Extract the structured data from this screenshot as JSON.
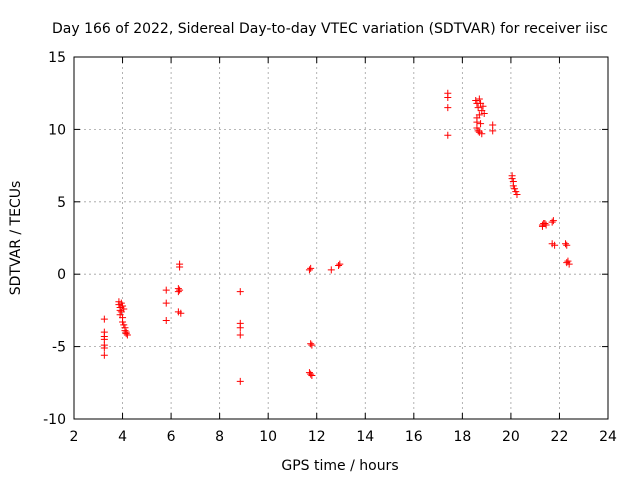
{
  "chart_data": {
    "type": "scatter",
    "title": "Day 166 of 2022, Sidereal Day-to-day VTEC variation (SDTVAR) for receiver iisc",
    "xlabel": "GPS time / hours",
    "ylabel": "SDTVAR / TECUs",
    "xlim": [
      2,
      24
    ],
    "ylim": [
      -10,
      15
    ],
    "xticks": [
      "2",
      "4",
      "6",
      "8",
      "10",
      "12",
      "14",
      "16",
      "18",
      "20",
      "22",
      "24"
    ],
    "yticks": [
      "-10",
      "-5",
      "0",
      "5",
      "10",
      "15"
    ],
    "grid": true,
    "marker": "+",
    "color": "#ff0000",
    "series": [
      {
        "name": "SDTVAR",
        "points": [
          [
            3.25,
            -3.1
          ],
          [
            3.25,
            -4.0
          ],
          [
            3.25,
            -4.3
          ],
          [
            3.25,
            -4.5
          ],
          [
            3.25,
            -4.9
          ],
          [
            3.25,
            -5.1
          ],
          [
            3.25,
            -5.6
          ],
          [
            3.85,
            -1.9
          ],
          [
            3.85,
            -2.1
          ],
          [
            3.9,
            -2.3
          ],
          [
            3.9,
            -2.5
          ],
          [
            3.9,
            -2.8
          ],
          [
            3.95,
            -2.0
          ],
          [
            3.95,
            -2.6
          ],
          [
            4.0,
            -2.2
          ],
          [
            4.0,
            -3.0
          ],
          [
            4.0,
            -3.3
          ],
          [
            4.05,
            -3.5
          ],
          [
            4.05,
            -2.4
          ],
          [
            4.1,
            -3.7
          ],
          [
            4.1,
            -3.9
          ],
          [
            4.15,
            -4.0
          ],
          [
            4.15,
            -4.1
          ],
          [
            4.2,
            -4.2
          ],
          [
            5.8,
            -1.1
          ],
          [
            5.8,
            -2.0
          ],
          [
            5.8,
            -3.2
          ],
          [
            6.3,
            -1.0
          ],
          [
            6.3,
            -1.2
          ],
          [
            6.3,
            -2.6
          ],
          [
            6.35,
            0.5
          ],
          [
            6.35,
            0.7
          ],
          [
            6.35,
            -1.1
          ],
          [
            6.4,
            -2.7
          ],
          [
            8.85,
            -1.2
          ],
          [
            8.85,
            -3.4
          ],
          [
            8.85,
            -3.7
          ],
          [
            8.85,
            -4.2
          ],
          [
            8.85,
            -7.4
          ],
          [
            11.7,
            0.3
          ],
          [
            11.75,
            0.4
          ],
          [
            11.75,
            -4.8
          ],
          [
            11.8,
            -4.9
          ],
          [
            11.7,
            -6.8
          ],
          [
            11.75,
            -6.9
          ],
          [
            11.8,
            -7.0
          ],
          [
            12.6,
            0.3
          ],
          [
            12.9,
            0.6
          ],
          [
            12.95,
            0.7
          ],
          [
            17.4,
            12.2
          ],
          [
            17.4,
            12.5
          ],
          [
            17.4,
            11.5
          ],
          [
            17.4,
            9.6
          ],
          [
            18.55,
            12.0
          ],
          [
            18.6,
            11.8
          ],
          [
            18.6,
            10.8
          ],
          [
            18.6,
            10.5
          ],
          [
            18.6,
            10.1
          ],
          [
            18.65,
            11.5
          ],
          [
            18.65,
            9.9
          ],
          [
            18.7,
            12.1
          ],
          [
            18.7,
            11.0
          ],
          [
            18.7,
            9.8
          ],
          [
            18.75,
            11.8
          ],
          [
            18.75,
            10.4
          ],
          [
            18.8,
            11.3
          ],
          [
            18.8,
            9.7
          ],
          [
            18.85,
            11.6
          ],
          [
            18.9,
            11.1
          ],
          [
            19.25,
            10.3
          ],
          [
            19.25,
            9.9
          ],
          [
            20.05,
            6.8
          ],
          [
            20.05,
            6.6
          ],
          [
            20.1,
            6.4
          ],
          [
            20.1,
            6.1
          ],
          [
            20.15,
            5.9
          ],
          [
            20.2,
            5.7
          ],
          [
            20.25,
            5.5
          ],
          [
            21.3,
            3.3
          ],
          [
            21.3,
            3.4
          ],
          [
            21.35,
            3.5
          ],
          [
            21.4,
            3.5
          ],
          [
            21.45,
            3.4
          ],
          [
            21.7,
            3.6
          ],
          [
            21.75,
            3.7
          ],
          [
            21.7,
            2.1
          ],
          [
            21.8,
            2.0
          ],
          [
            22.25,
            2.1
          ],
          [
            22.3,
            2.0
          ],
          [
            22.3,
            0.8
          ],
          [
            22.35,
            0.9
          ],
          [
            22.4,
            0.7
          ]
        ]
      }
    ]
  }
}
